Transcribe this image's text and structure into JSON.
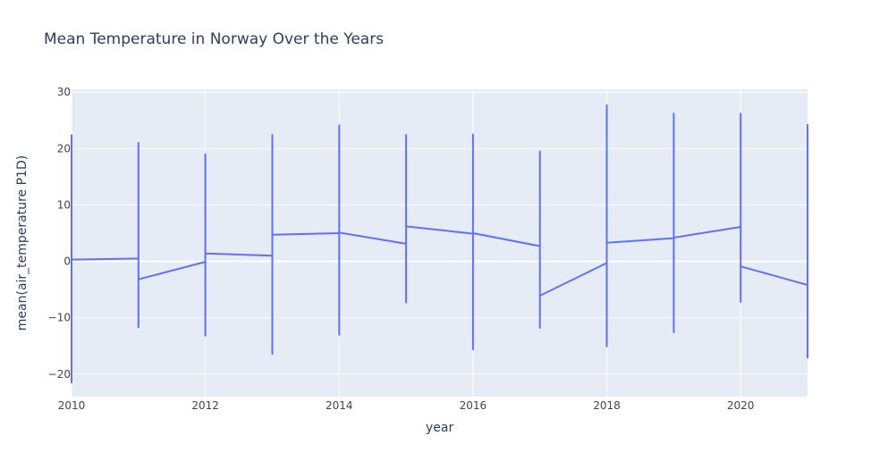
{
  "chart_data": {
    "type": "line",
    "title": "Mean Temperature in Norway Over the Years",
    "xlabel": "year",
    "ylabel": "mean(air_temperature P1D)",
    "xlim": [
      2010,
      2021
    ],
    "ylim": [
      -24,
      30.5
    ],
    "x_ticks": [
      2010,
      2012,
      2014,
      2016,
      2018,
      2020
    ],
    "x_tick_labels": [
      "2010",
      "2012",
      "2014",
      "2016",
      "2018",
      "2020"
    ],
    "y_ticks": [
      -20,
      -10,
      0,
      10,
      20,
      30
    ],
    "y_tick_labels": [
      "−20",
      "−10",
      "0",
      "10",
      "20",
      "30"
    ],
    "grid": true,
    "colors": {
      "line": "#636efa",
      "plot_bg": "#e5ecf6",
      "grid": "#ffffff",
      "text": "#2a3f5f"
    },
    "series": [
      {
        "x": [
          2010,
          2010,
          2010,
          2011,
          2011,
          2011,
          2011,
          2012,
          2012,
          2012,
          2012,
          2013,
          2013,
          2013,
          2013,
          2014,
          2014,
          2014,
          2014,
          2015,
          2015,
          2015,
          2015,
          2016,
          2016,
          2016,
          2016,
          2017,
          2017,
          2017,
          2017,
          2018,
          2018,
          2018,
          2018,
          2019,
          2019,
          2019,
          2019,
          2020,
          2020,
          2020,
          2020,
          2021,
          2021,
          2021
        ],
        "y": [
          22.5,
          -21.5,
          0.3,
          0.5,
          21.0,
          -11.7,
          -3.2,
          -0.1,
          19.0,
          -13.2,
          1.4,
          1.0,
          22.4,
          -16.4,
          4.7,
          5.0,
          24.1,
          -13.0,
          5.1,
          3.1,
          22.4,
          -7.3,
          6.2,
          4.9,
          22.5,
          -15.6,
          5.0,
          2.7,
          19.5,
          -11.8,
          -6.1,
          -0.3,
          27.7,
          -15.1,
          3.3,
          4.1,
          26.2,
          -12.6,
          4.2,
          6.1,
          26.2,
          -7.2,
          -0.9,
          -4.2,
          24.2,
          -17.2
        ]
      }
    ]
  }
}
